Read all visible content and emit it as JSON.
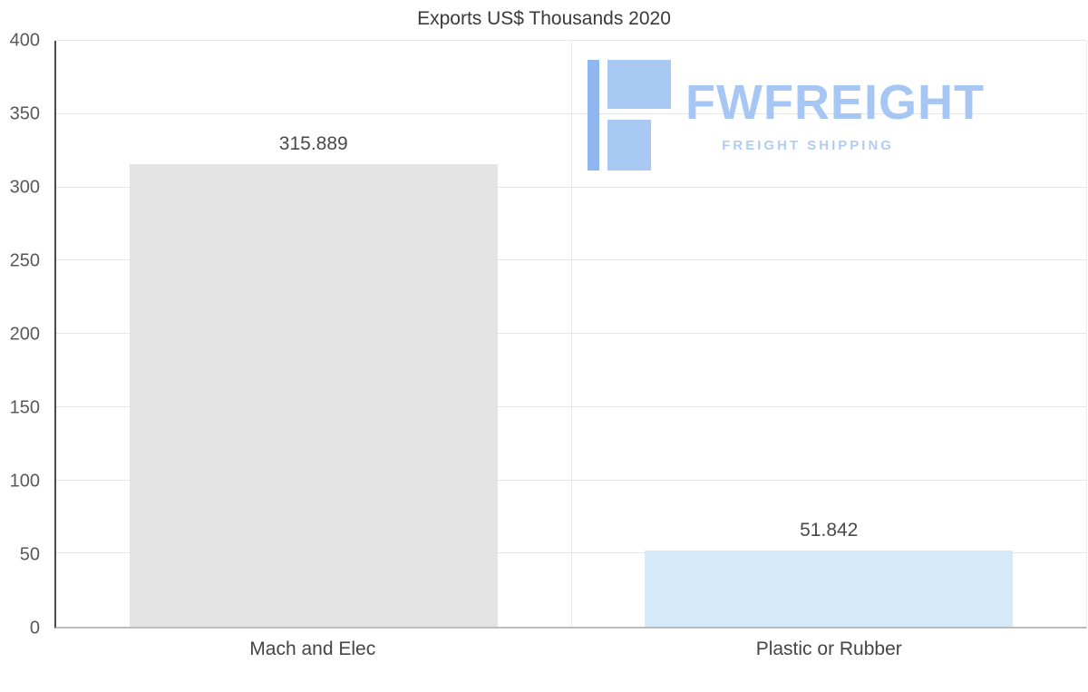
{
  "logo": {
    "name": "FWFREIGHT",
    "tagline": "FREIGHT SHIPPING",
    "wordmark_color": "#a6c6f3",
    "tagline_color": "#b3ccf4",
    "icon_colors": [
      "#8db7ee",
      "#a9c9f5"
    ]
  },
  "chart_data": {
    "type": "bar",
    "title": "Exports US$ Thousands 2020",
    "categories": [
      "Mach and Elec",
      "Plastic or Rubber"
    ],
    "values": [
      315.889,
      51.842
    ],
    "value_labels": [
      "315.889",
      "51.842"
    ],
    "bar_colors": [
      "#e3e3e3",
      "#d6e9f9"
    ],
    "xlabel": "",
    "ylabel": "",
    "ylim": [
      0,
      400
    ],
    "ytick_step": 50,
    "ytick_labels": [
      "0",
      "50",
      "100",
      "150",
      "200",
      "250",
      "300",
      "350",
      "400"
    ],
    "grid": true,
    "legend": "none"
  }
}
